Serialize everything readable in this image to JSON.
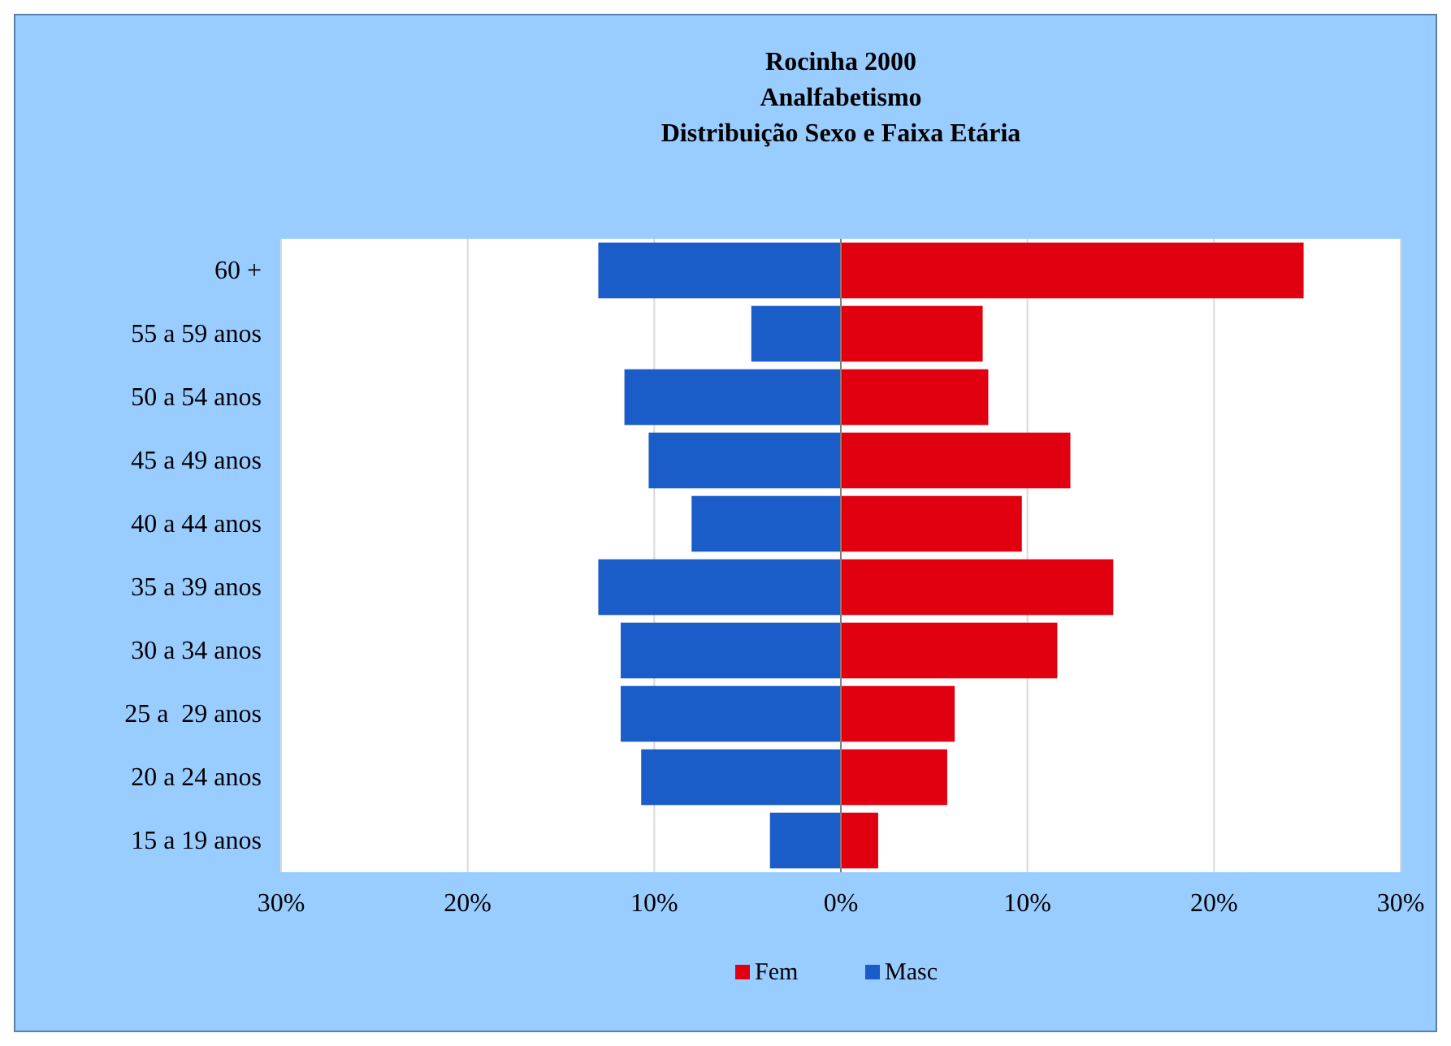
{
  "chart_data": {
    "type": "bar",
    "orientation": "horizontal",
    "stacked": true,
    "title": "Rocinha 2000\nAnalfabetismo\nDistribuição Sexo e Faixa Etária",
    "categories": [
      "60 +",
      "55 a 59 anos",
      "50 a 54 anos",
      "45 a 49 anos",
      "40 a 44 anos",
      "35 a 39 anos",
      "30 a 34 anos",
      "25 a  29 anos",
      "20 a 24 anos",
      "15 a 19 anos"
    ],
    "series": [
      {
        "name": "Fem",
        "color": "#e00010",
        "values": [
          24.8,
          7.6,
          7.9,
          12.3,
          9.7,
          14.6,
          11.6,
          6.1,
          5.7,
          2.0
        ]
      },
      {
        "name": "Masc",
        "color": "#1a5cc8",
        "values": [
          -13.0,
          -4.8,
          -11.6,
          -10.3,
          -8.0,
          -13.0,
          -11.8,
          -11.8,
          -10.7,
          -3.8
        ]
      }
    ],
    "xlim": [
      -30,
      30
    ],
    "xticks": [
      {
        "value": -30,
        "label": "30%"
      },
      {
        "value": -20,
        "label": "20%"
      },
      {
        "value": -10,
        "label": "10%"
      },
      {
        "value": 0,
        "label": "0%"
      },
      {
        "value": 10,
        "label": "10%"
      },
      {
        "value": 20,
        "label": "20%"
      },
      {
        "value": 30,
        "label": "30%"
      }
    ],
    "grid": "x",
    "legend": "bottom"
  }
}
